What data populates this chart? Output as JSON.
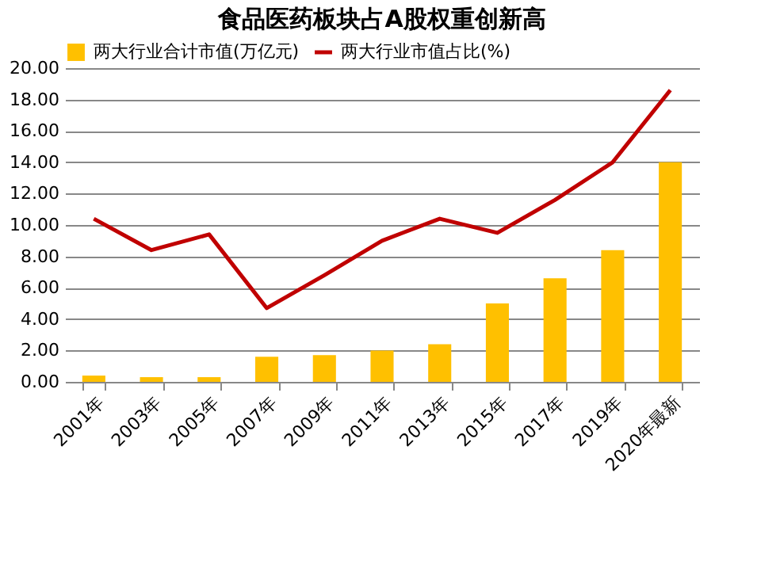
{
  "chart_data": {
    "type": "bar",
    "title": "食品医药板块占A股权重创新高",
    "categories": [
      "2001年",
      "2003年",
      "2005年",
      "2007年",
      "2009年",
      "2011年",
      "2013年",
      "2015年",
      "2017年",
      "2019年",
      "2020年最新"
    ],
    "series": [
      {
        "name": "两大行业合计市值(万亿元)",
        "color": "#ffc000",
        "values": [
          0.4,
          0.3,
          0.3,
          1.6,
          1.7,
          2.0,
          2.4,
          5.0,
          6.6,
          8.4,
          14.0
        ]
      },
      {
        "name": "两大行业市值占比(%)",
        "type": "line",
        "color": "#c00000",
        "values": [
          10.4,
          8.4,
          9.4,
          4.7,
          6.8,
          9.0,
          10.4,
          9.5,
          11.6,
          14.0,
          18.6
        ]
      }
    ],
    "ylim": [
      0,
      20
    ],
    "yticks": [
      {
        "value": 0,
        "label": "0.00"
      },
      {
        "value": 2,
        "label": "2.00"
      },
      {
        "value": 4,
        "label": "4.00"
      },
      {
        "value": 6,
        "label": "6.00"
      },
      {
        "value": 8,
        "label": "8.00"
      },
      {
        "value": 10,
        "label": "10.00"
      },
      {
        "value": 12,
        "label": "12.00"
      },
      {
        "value": 14,
        "label": "14.00"
      },
      {
        "value": 16,
        "label": "16.00"
      },
      {
        "value": 18,
        "label": "18.00"
      },
      {
        "value": 20,
        "label": "20.00"
      }
    ],
    "grid": "y",
    "legend": "top",
    "line_style": "solid",
    "marker": "none"
  }
}
